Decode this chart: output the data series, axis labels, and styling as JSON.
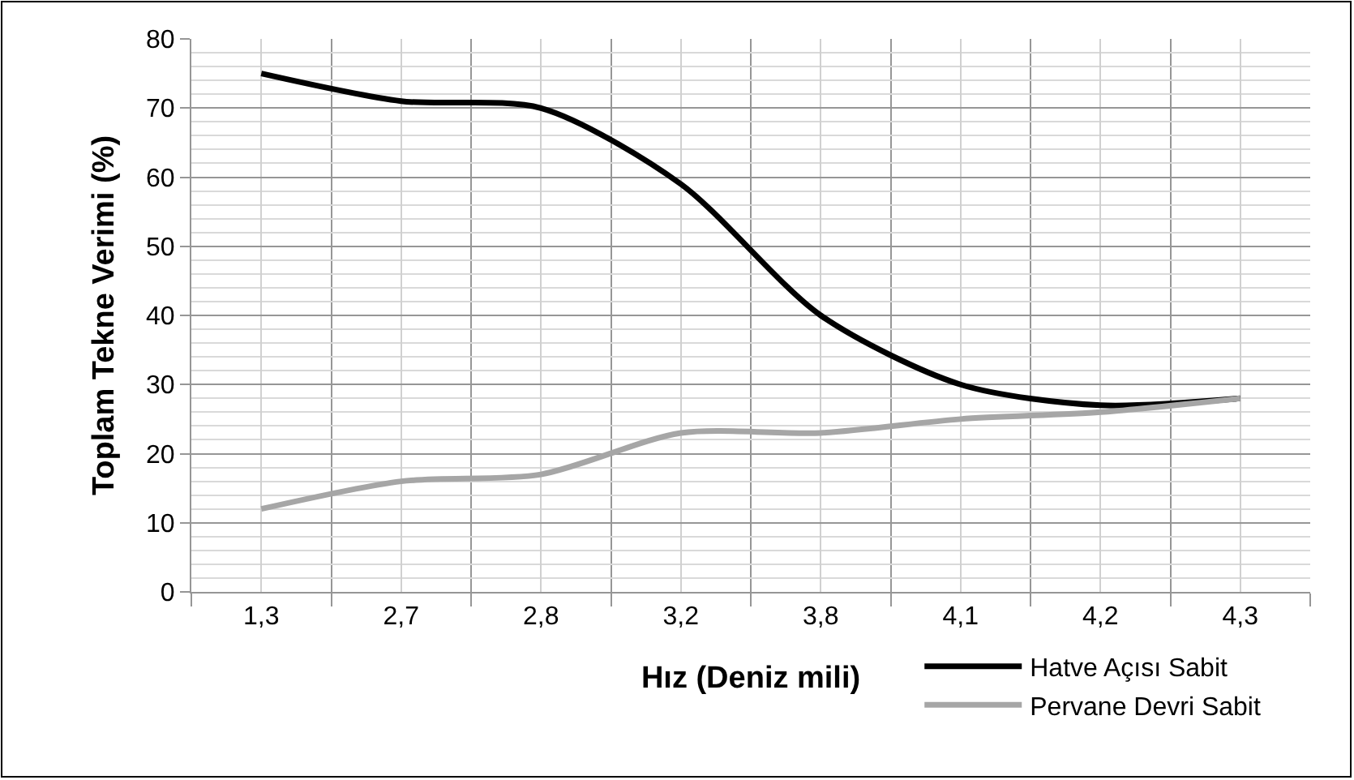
{
  "chart_data": {
    "type": "line",
    "xlabel": "Hız (Deniz mili)",
    "ylabel": "Toplam Tekne Verimi (%)",
    "categories": [
      "1,3",
      "2,7",
      "2,8",
      "3,2",
      "3,8",
      "4,1",
      "4,2",
      "4,3"
    ],
    "series": [
      {
        "name": "Hatve Açısı Sabit",
        "color": "#000000",
        "values": [
          75,
          71,
          70,
          59,
          40,
          30,
          27,
          28
        ]
      },
      {
        "name": "Pervane Devri Sabit",
        "color": "#a6a6a6",
        "values": [
          12,
          16,
          17,
          23,
          23,
          25,
          26,
          28
        ]
      }
    ],
    "ylim": [
      0,
      80
    ],
    "yticks": [
      0,
      10,
      20,
      30,
      40,
      50,
      60,
      70,
      80
    ],
    "grid": true,
    "legend": "bottom right",
    "marker": "none",
    "line_style": "solid"
  }
}
